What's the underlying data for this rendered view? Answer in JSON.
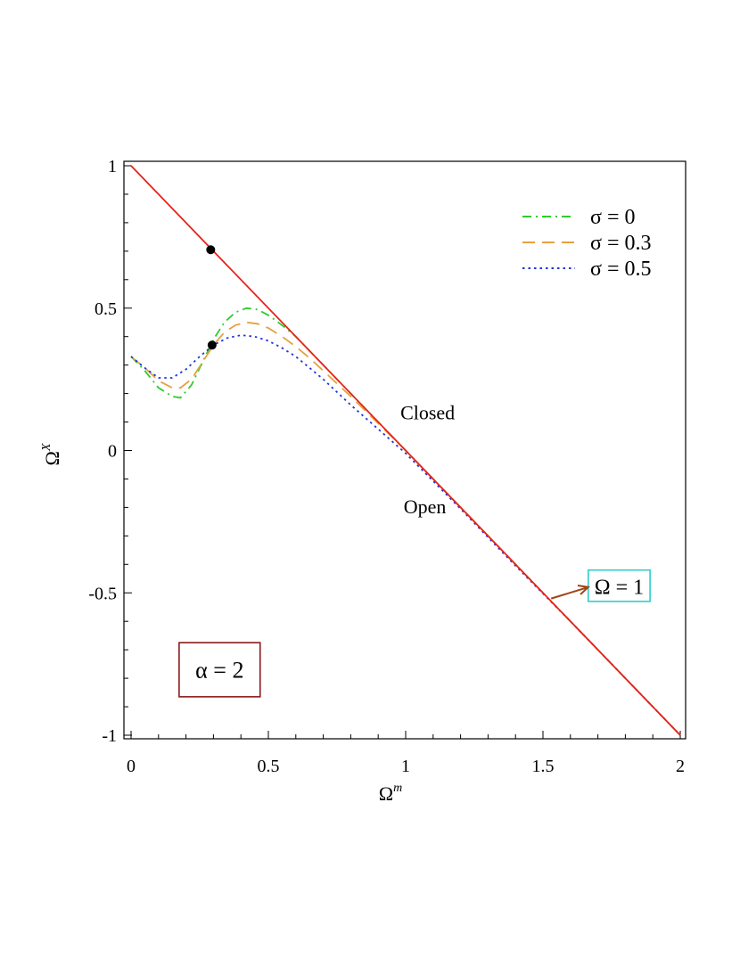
{
  "chart_data": {
    "type": "line",
    "xlabel": "Ω",
    "xlabel_sup": "m",
    "ylabel": "Ω",
    "ylabel_sup": "X",
    "xlim": [
      0,
      2
    ],
    "ylim": [
      -1,
      1
    ],
    "x_ticks": [
      0,
      0.5,
      1,
      1.5,
      2
    ],
    "x_tick_labels": [
      "0",
      "0.5",
      "1",
      "1.5",
      "2"
    ],
    "y_ticks": [
      -1,
      -0.5,
      0,
      0.5,
      1
    ],
    "y_tick_labels": [
      "-1",
      "-0.5",
      "0",
      "0.5",
      "1"
    ],
    "grid": false,
    "legend_position": "top-right",
    "boundary_line": {
      "color": "#e8221a",
      "x": [
        0,
        2
      ],
      "y": [
        1,
        -1
      ]
    },
    "series": [
      {
        "name": "σ = 0",
        "color": "#2ecc2e",
        "dash": "dash-dot",
        "x": [
          0,
          0.05,
          0.1,
          0.15,
          0.18,
          0.22,
          0.26,
          0.3,
          0.34,
          0.38,
          0.42,
          0.46,
          0.5,
          0.55,
          0.6,
          0.65,
          0.7,
          0.75,
          0.8,
          0.9,
          1.0,
          1.2,
          1.4,
          1.6,
          1.8,
          2.0
        ],
        "y": [
          0.33,
          0.28,
          0.22,
          0.19,
          0.185,
          0.23,
          0.31,
          0.39,
          0.45,
          0.485,
          0.5,
          0.495,
          0.475,
          0.44,
          0.4,
          0.35,
          0.3,
          0.25,
          0.2,
          0.1,
          0.0,
          -0.2,
          -0.4,
          -0.6,
          -0.8,
          -1.0
        ]
      },
      {
        "name": "σ = 0.3",
        "color": "#e8a040",
        "dash": "long-dash",
        "x": [
          0,
          0.05,
          0.1,
          0.15,
          0.18,
          0.22,
          0.26,
          0.3,
          0.34,
          0.38,
          0.42,
          0.46,
          0.5,
          0.55,
          0.6,
          0.65,
          0.7,
          0.75,
          0.8,
          0.9,
          1.0,
          1.2,
          1.4,
          1.6,
          1.8,
          2.0
        ],
        "y": [
          0.33,
          0.29,
          0.245,
          0.22,
          0.22,
          0.25,
          0.31,
          0.37,
          0.415,
          0.44,
          0.45,
          0.445,
          0.43,
          0.4,
          0.365,
          0.325,
          0.28,
          0.235,
          0.19,
          0.095,
          0.0,
          -0.2,
          -0.4,
          -0.6,
          -0.8,
          -1.0
        ]
      },
      {
        "name": "σ = 0.5",
        "color": "#2233dd",
        "dash": "dotted",
        "x": [
          0,
          0.05,
          0.1,
          0.15,
          0.2,
          0.25,
          0.3,
          0.35,
          0.4,
          0.45,
          0.5,
          0.55,
          0.6,
          0.65,
          0.7,
          0.75,
          0.8,
          0.9,
          1.0,
          1.2,
          1.4,
          1.6,
          1.8,
          2.0
        ],
        "y": [
          0.33,
          0.29,
          0.255,
          0.255,
          0.285,
          0.33,
          0.37,
          0.395,
          0.405,
          0.4,
          0.385,
          0.36,
          0.33,
          0.29,
          0.25,
          0.205,
          0.16,
          0.075,
          -0.01,
          -0.205,
          -0.405,
          -0.6,
          -0.8,
          -1.0
        ]
      }
    ],
    "points": [
      {
        "x": 0.29,
        "y": 0.705
      },
      {
        "x": 0.295,
        "y": 0.37
      }
    ],
    "annotations": {
      "closed": {
        "text": "Closed",
        "x": 1.08,
        "y": 0.11
      },
      "open": {
        "text": "Open",
        "x": 1.07,
        "y": -0.22
      },
      "omega_box": {
        "text": "Ω = 1",
        "border": "#33cccc",
        "x0": 1.665,
        "x1": 1.89,
        "y0": -0.42,
        "y1": -0.53
      },
      "omega_arrow": {
        "color": "#a0441a",
        "from_x": 1.53,
        "from_y": -0.52,
        "to_x": 1.665,
        "to_y": -0.48
      },
      "alpha_box": {
        "text": "α = 2",
        "border": "#8b1a1a",
        "x0": 0.175,
        "x1": 0.47,
        "y0": -0.675,
        "y1": -0.865
      }
    }
  }
}
